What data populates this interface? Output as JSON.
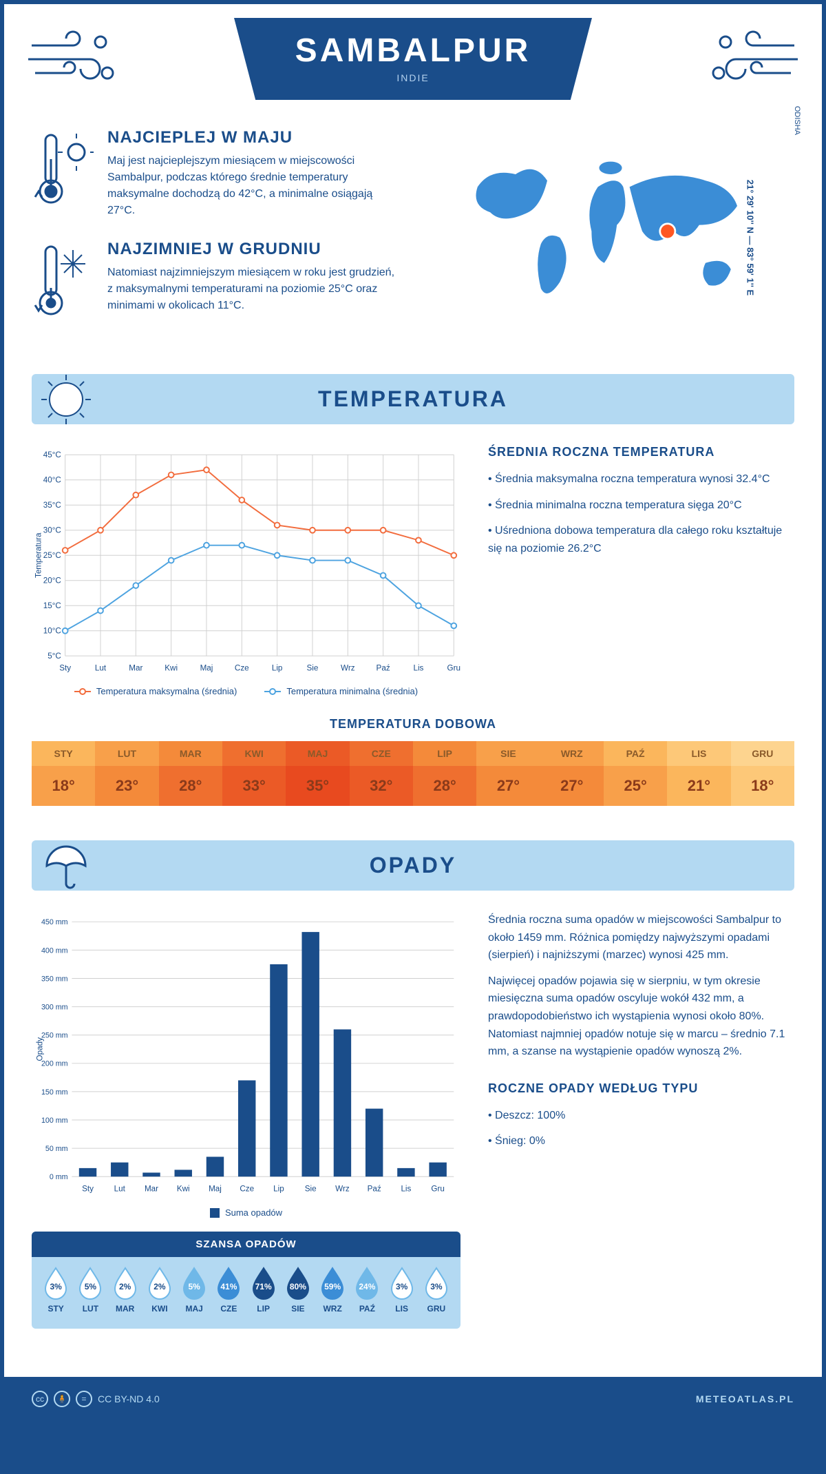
{
  "colors": {
    "primary": "#1a4d8a",
    "light_blue": "#b3d9f2",
    "map_blue": "#3b8dd6",
    "pin": "#ff5722",
    "max_line": "#f26c3d",
    "min_line": "#4da3e0",
    "grid": "#d0d0d0",
    "bar": "#1a4d8a"
  },
  "header": {
    "title": "SAMBALPUR",
    "subtitle": "INDIE"
  },
  "location": {
    "region": "ODISHA",
    "coords": "21° 29' 10'' N — 83° 59' 1'' E"
  },
  "info": {
    "warm": {
      "title": "NAJCIEPLEJ W MAJU",
      "text": "Maj jest najcieplejszym miesiącem w miejscowości Sambalpur, podczas którego średnie temperatury maksymalne dochodzą do 42°C, a minimalne osiągają 27°C."
    },
    "cold": {
      "title": "NAJZIMNIEJ W GRUDNIU",
      "text": "Natomiast najzimniejszym miesiącem w roku jest grudzień, z maksymalnymi temperaturami na poziomie 25°C oraz minimami w okolicach 11°C."
    }
  },
  "temperature": {
    "section_title": "TEMPERATURA",
    "summary_title": "ŚREDNIA ROCZNA TEMPERATURA",
    "summary_items": [
      "Średnia maksymalna roczna temperatura wynosi 32.4°C",
      "Średnia minimalna roczna temperatura sięga 20°C",
      "Uśredniona dobowa temperatura dla całego roku kształtuje się na poziomie 26.2°C"
    ],
    "y_axis_label": "Temperatura",
    "y_min": 5,
    "y_max": 45,
    "y_step": 5,
    "y_unit": "°C",
    "months": [
      "Sty",
      "Lut",
      "Mar",
      "Kwi",
      "Maj",
      "Cze",
      "Lip",
      "Sie",
      "Wrz",
      "Paź",
      "Lis",
      "Gru"
    ],
    "max_series": [
      26,
      30,
      37,
      41,
      42,
      36,
      31,
      30,
      30,
      30,
      28,
      25
    ],
    "min_series": [
      10,
      14,
      19,
      24,
      27,
      27,
      25,
      24,
      24,
      21,
      15,
      11
    ],
    "legend_max": "Temperatura maksymalna (średnia)",
    "legend_min": "Temperatura minimalna (średnia)",
    "daily_title": "TEMPERATURA DOBOWA",
    "daily_months": [
      "STY",
      "LUT",
      "MAR",
      "KWI",
      "MAJ",
      "CZE",
      "LIP",
      "SIE",
      "WRZ",
      "PAŹ",
      "LIS",
      "GRU"
    ],
    "daily_values": [
      "18°",
      "23°",
      "28°",
      "33°",
      "35°",
      "32°",
      "28°",
      "27°",
      "27°",
      "25°",
      "21°",
      "18°"
    ],
    "daily_header_colors": [
      "#fbb65c",
      "#f8a04a",
      "#f48a3a",
      "#ef6f2f",
      "#eb5a26",
      "#ef6f2f",
      "#f48a3a",
      "#f8a04a",
      "#f8a04a",
      "#fbb65c",
      "#fdc878",
      "#fdd48f"
    ],
    "daily_value_colors": [
      "#f8a04a",
      "#f48a3a",
      "#ef6f2f",
      "#eb5a26",
      "#e84a1f",
      "#eb5a26",
      "#ef6f2f",
      "#f48a3a",
      "#f48a3a",
      "#f8a04a",
      "#fbb65c",
      "#fdc878"
    ]
  },
  "precip": {
    "section_title": "OPADY",
    "y_axis_label": "Opady",
    "y_min": 0,
    "y_max": 450,
    "y_step": 50,
    "y_unit": " mm",
    "months": [
      "Sty",
      "Lut",
      "Mar",
      "Kwi",
      "Maj",
      "Cze",
      "Lip",
      "Sie",
      "Wrz",
      "Paź",
      "Lis",
      "Gru"
    ],
    "values": [
      15,
      25,
      7,
      12,
      35,
      170,
      375,
      432,
      260,
      120,
      15,
      25
    ],
    "legend": "Suma opadów",
    "text_p1": "Średnia roczna suma opadów w miejscowości Sambalpur to około 1459 mm. Różnica pomiędzy najwyższymi opadami (sierpień) i najniższymi (marzec) wynosi 425 mm.",
    "text_p2": "Najwięcej opadów pojawia się w sierpniu, w tym okresie miesięczna suma opadów oscyluje wokół 432 mm, a prawdopodobieństwo ich wystąpienia wynosi około 80%. Natomiast najmniej opadów notuje się w marcu – średnio 7.1 mm, a szanse na wystąpienie opadów wynoszą 2%.",
    "chance_title": "SZANSA OPADÓW",
    "chance_months": [
      "STY",
      "LUT",
      "MAR",
      "KWI",
      "MAJ",
      "CZE",
      "LIP",
      "SIE",
      "WRZ",
      "PAŹ",
      "LIS",
      "GRU"
    ],
    "chance_values": [
      "3%",
      "5%",
      "2%",
      "2%",
      "5%",
      "41%",
      "71%",
      "80%",
      "59%",
      "24%",
      "3%",
      "3%"
    ],
    "chance_levels": [
      0,
      0,
      0,
      0,
      1,
      2,
      3,
      3,
      2,
      1,
      0,
      0
    ],
    "drop_colors": [
      "#ffffff",
      "#6fb8e8",
      "#3b8dd6",
      "#1a4d8a"
    ],
    "drop_label_colors": [
      "#1a4d8a",
      "#ffffff",
      "#ffffff",
      "#ffffff"
    ],
    "type_title": "ROCZNE OPADY WEDŁUG TYPU",
    "type_items": [
      "Deszcz: 100%",
      "Śnieg: 0%"
    ]
  },
  "footer": {
    "license": "CC BY-ND 4.0",
    "site": "METEOATLAS.PL"
  }
}
